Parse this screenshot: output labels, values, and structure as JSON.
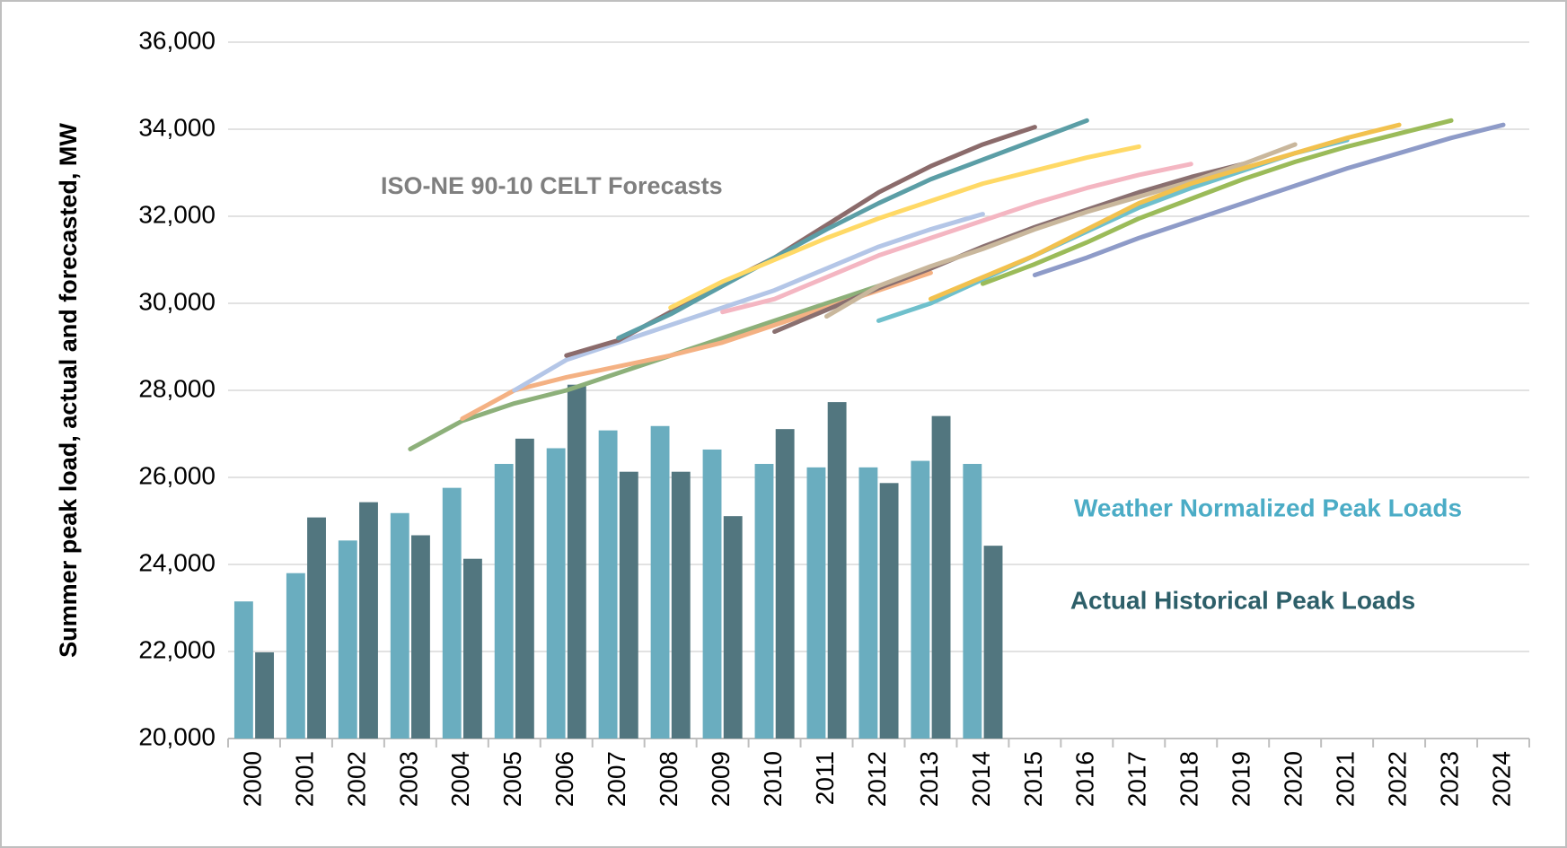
{
  "chart_data": {
    "type": "bar",
    "y_label": "Summer peak load, actual and forecasted, MW",
    "annotations": [
      "ISO-NE 90-10 CELT Forecasts"
    ],
    "categories": [
      "2000",
      "2001",
      "2002",
      "2003",
      "2004",
      "2005",
      "2006",
      "2007",
      "2008",
      "2009",
      "2010",
      "2011",
      "2012",
      "2013",
      "2014",
      "2015",
      "2016",
      "2017",
      "2018",
      "2019",
      "2020",
      "2021",
      "2022",
      "2023",
      "2024"
    ],
    "series": [
      {
        "name": "Weather Normalized Peak Loads",
        "color": "#6aadbf",
        "values": [
          23150,
          23800,
          24550,
          25180,
          25760,
          26310,
          26670,
          27080,
          27180,
          26640,
          26310,
          26230,
          26230,
          26380,
          26310,
          null,
          null,
          null,
          null,
          null,
          null,
          null,
          null,
          null,
          null
        ]
      },
      {
        "name": "Actual Historical Peak Loads",
        "color": "#52767f",
        "values": [
          21980,
          25080,
          25430,
          24670,
          24130,
          26890,
          28130,
          26130,
          26130,
          25110,
          27110,
          27730,
          25870,
          27410,
          24430,
          null,
          null,
          null,
          null,
          null,
          null,
          null,
          null,
          null,
          null
        ]
      }
    ],
    "forecasts": [
      {
        "color": "#8db07a",
        "x": [
          2003,
          2004,
          2005,
          2006,
          2007,
          2008,
          2009,
          2010,
          2011,
          2012
        ],
        "values": [
          26650,
          27300,
          27700,
          28000,
          28400,
          28800,
          29200,
          29600,
          30000,
          30400
        ]
      },
      {
        "color": "#f4b183",
        "x": [
          2004,
          2005,
          2006,
          2007,
          2008,
          2009,
          2010,
          2011,
          2012,
          2013
        ],
        "values": [
          27350,
          28000,
          28300,
          28550,
          28800,
          29100,
          29500,
          29900,
          30300,
          30700
        ]
      },
      {
        "color": "#b4c6e7",
        "x": [
          2005,
          2006,
          2007,
          2008,
          2009,
          2010,
          2011,
          2012,
          2013,
          2014
        ],
        "values": [
          28000,
          28700,
          29100,
          29500,
          29900,
          30300,
          30800,
          31300,
          31700,
          32050
        ]
      },
      {
        "color": "#8b6b6b",
        "x": [
          2006,
          2007,
          2008,
          2009,
          2010,
          2011,
          2012,
          2013,
          2014,
          2015
        ],
        "values": [
          28800,
          29150,
          29800,
          30450,
          31050,
          31800,
          32550,
          33150,
          33650,
          34050
        ]
      },
      {
        "color": "#5b9ea6",
        "x": [
          2007,
          2008,
          2009,
          2010,
          2011,
          2012,
          2013,
          2014,
          2015,
          2016
        ],
        "values": [
          29200,
          29750,
          30400,
          31050,
          31700,
          32300,
          32850,
          33300,
          33750,
          34200
        ]
      },
      {
        "color": "#ffd966",
        "x": [
          2008,
          2009,
          2010,
          2011,
          2012,
          2013,
          2014,
          2015,
          2016,
          2017
        ],
        "values": [
          29900,
          30500,
          31000,
          31500,
          31950,
          32350,
          32750,
          33050,
          33350,
          33600
        ]
      },
      {
        "color": "#f4b6c2",
        "x": [
          2009,
          2010,
          2011,
          2012,
          2013,
          2014,
          2015,
          2016,
          2017,
          2018
        ],
        "values": [
          29800,
          30100,
          30600,
          31100,
          31500,
          31900,
          32300,
          32650,
          32950,
          33200
        ]
      },
      {
        "color": "#8a7070",
        "x": [
          2010,
          2011,
          2012,
          2013,
          2014,
          2015,
          2016,
          2017,
          2018,
          2019
        ],
        "values": [
          29350,
          29850,
          30350,
          30800,
          31300,
          31750,
          32150,
          32550,
          32900,
          33200
        ]
      },
      {
        "color": "#c9b79c",
        "x": [
          2011,
          2012,
          2013,
          2014,
          2015,
          2016,
          2017,
          2018,
          2019,
          2020
        ],
        "values": [
          29700,
          30400,
          30850,
          31250,
          31700,
          32100,
          32450,
          32800,
          33200,
          33650
        ]
      },
      {
        "color": "#6fc0cc",
        "x": [
          2012,
          2013,
          2014,
          2015,
          2016,
          2017,
          2018,
          2019,
          2020,
          2021
        ],
        "values": [
          29600,
          30000,
          30550,
          31100,
          31650,
          32200,
          32650,
          33050,
          33450,
          33750
        ]
      },
      {
        "color": "#f2c14e",
        "x": [
          2013,
          2014,
          2015,
          2016,
          2017,
          2018,
          2019,
          2020,
          2021,
          2022
        ],
        "values": [
          30100,
          30600,
          31100,
          31700,
          32300,
          32750,
          33100,
          33450,
          33800,
          34100
        ]
      },
      {
        "color": "#9bbb59",
        "x": [
          2014,
          2015,
          2016,
          2017,
          2018,
          2019,
          2020,
          2021,
          2022,
          2023
        ],
        "values": [
          30450,
          30900,
          31400,
          31950,
          32400,
          32850,
          33250,
          33600,
          33900,
          34200
        ]
      },
      {
        "color": "#8e9bc8",
        "x": [
          2015,
          2016,
          2017,
          2018,
          2019,
          2020,
          2021,
          2022,
          2023,
          2024
        ],
        "values": [
          30650,
          31050,
          31500,
          31900,
          32300,
          32700,
          33100,
          33450,
          33800,
          34100
        ]
      }
    ],
    "ylim": [
      20000,
      36000
    ],
    "yticks": [
      {
        "value": 20000,
        "label": "20,000"
      },
      {
        "value": 22000,
        "label": "22,000"
      },
      {
        "value": 24000,
        "label": "24,000"
      },
      {
        "value": 26000,
        "label": "26,000"
      },
      {
        "value": 28000,
        "label": "28,000"
      },
      {
        "value": 30000,
        "label": "30,000"
      },
      {
        "value": 32000,
        "label": "32,000"
      },
      {
        "value": 34000,
        "label": "34,000"
      },
      {
        "value": 36000,
        "label": "36,000"
      }
    ],
    "grid": true
  }
}
